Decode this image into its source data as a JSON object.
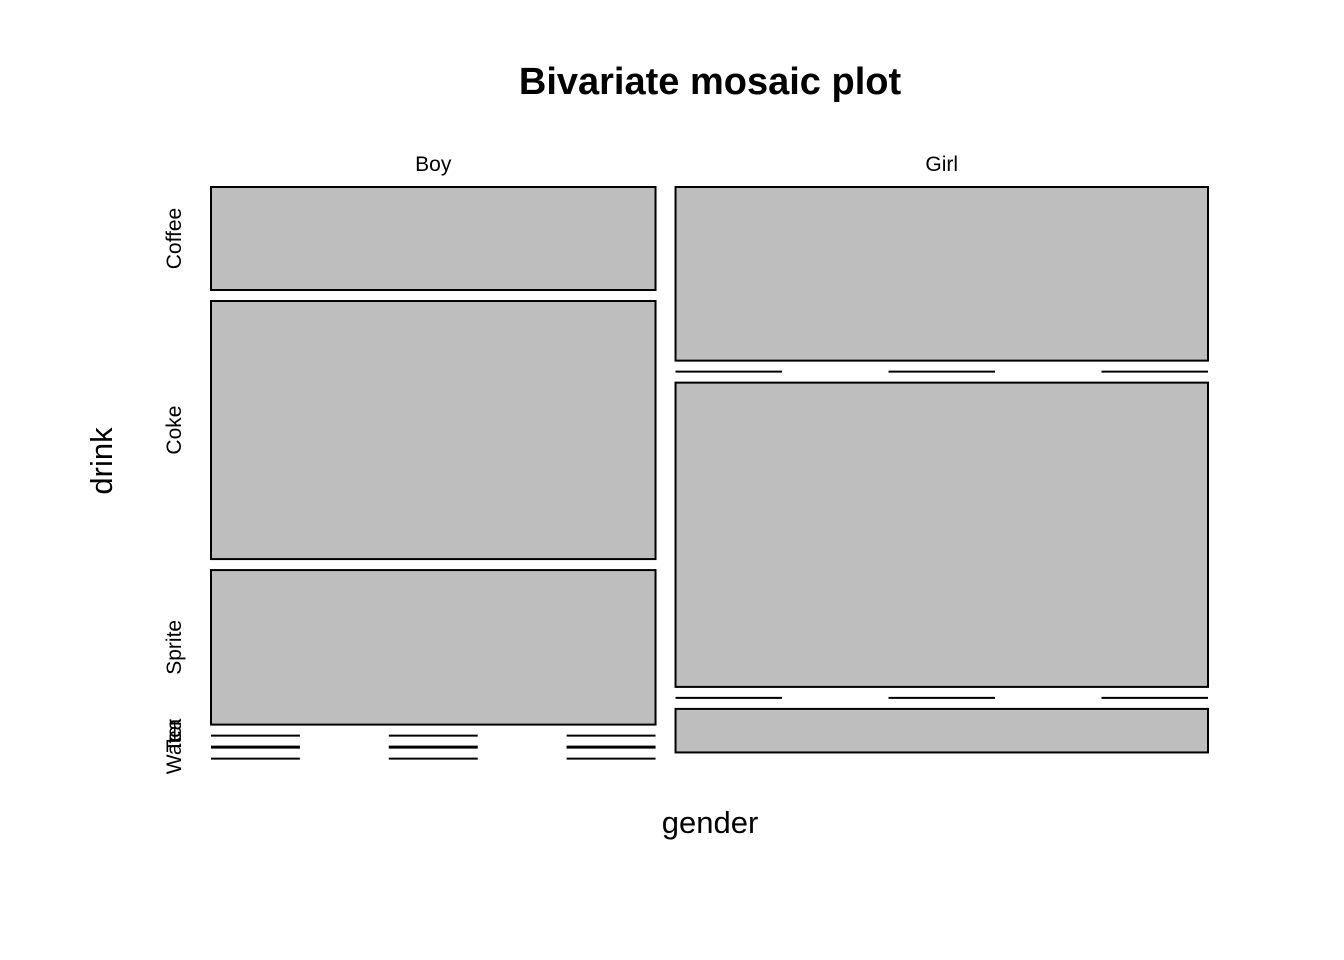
{
  "chart_data": {
    "type": "mosaic",
    "title": "Bivariate mosaic plot",
    "xlabel": "gender",
    "ylabel": "drink",
    "x_categories": [
      "Boy",
      "Girl"
    ],
    "y_categories": [
      "Coffee",
      "Coke",
      "Sprite",
      "Tea",
      "Water"
    ],
    "x_proportions": [
      0.455,
      0.545
    ],
    "conditional_proportions": [
      {
        "category": "Boy",
        "values": [
          0.194,
          0.486,
          0.291,
          0.0,
          0.0
        ]
      },
      {
        "category": "Girl",
        "values": [
          0.327,
          0.0,
          0.573,
          0.0,
          0.082
        ]
      }
    ],
    "tile_color": "#bebebe",
    "border_color": "#000000"
  }
}
